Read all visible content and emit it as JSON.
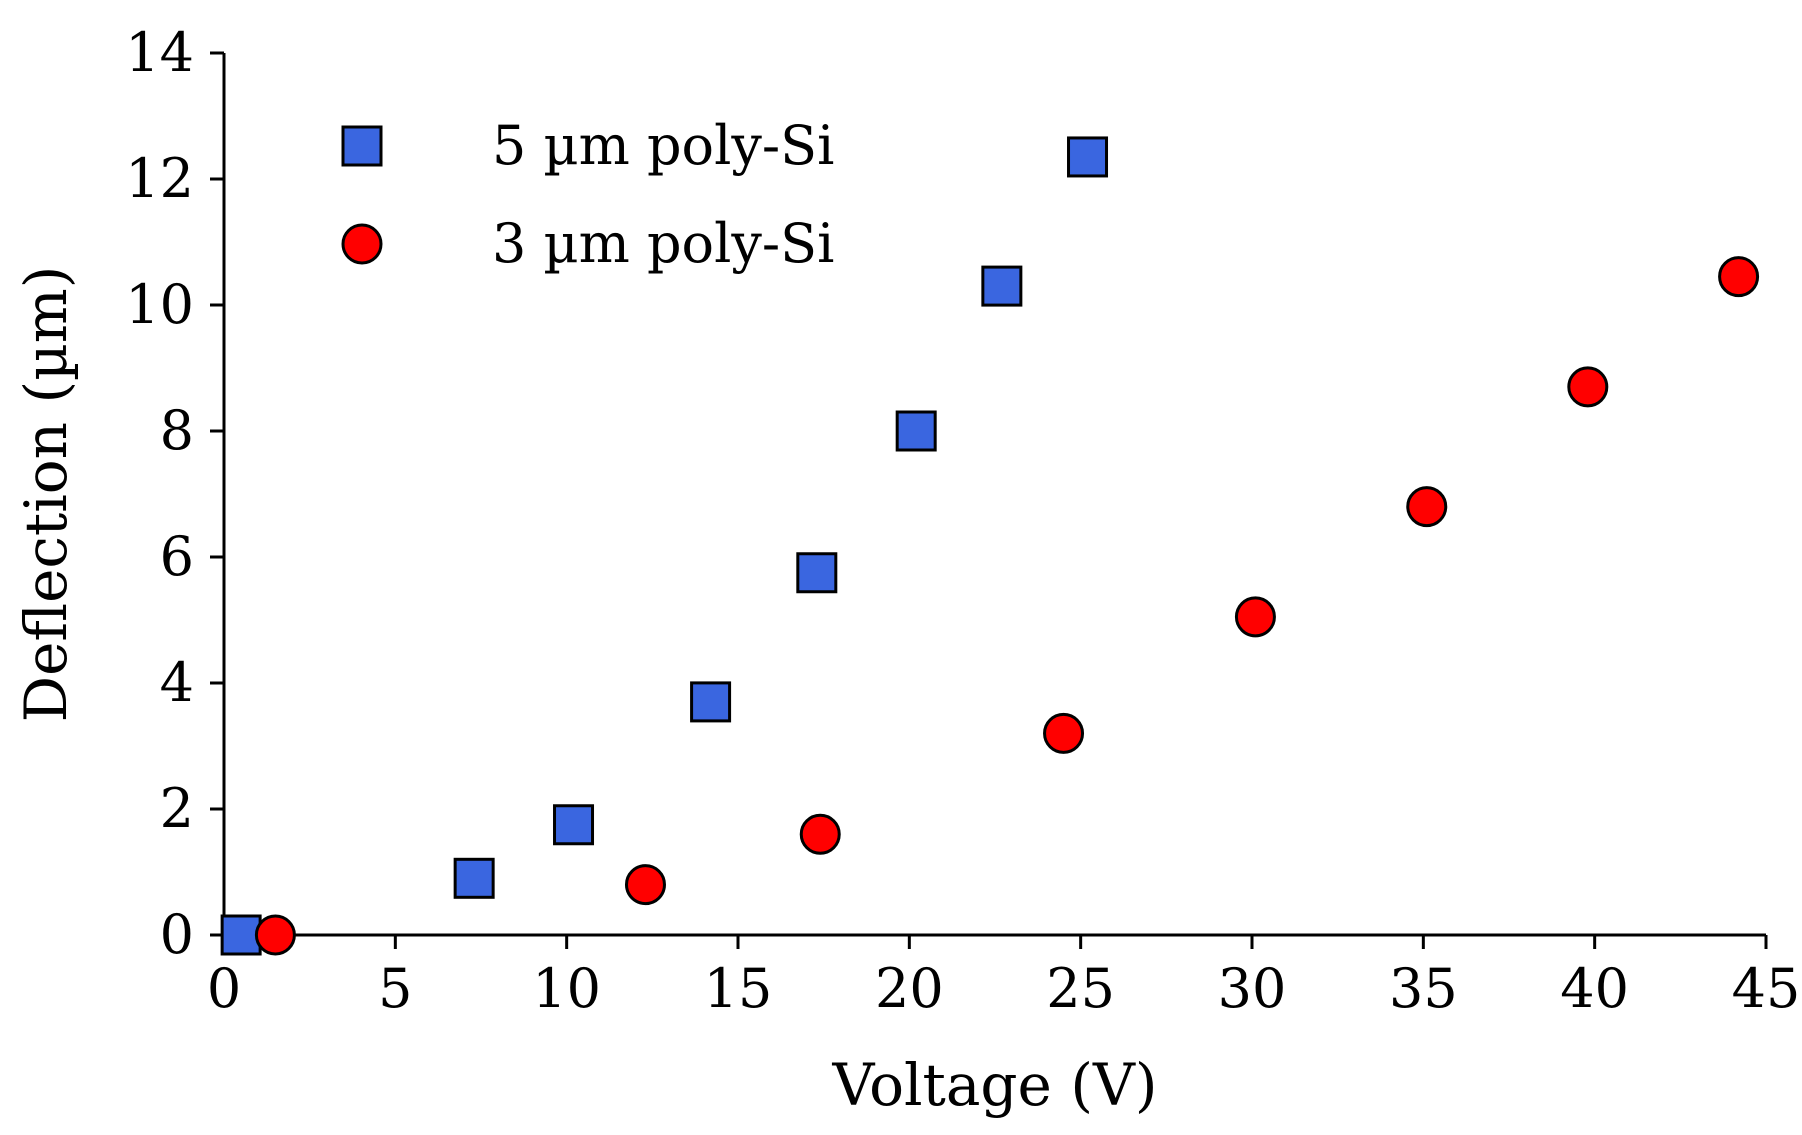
{
  "chart_data": {
    "type": "scatter",
    "title": "",
    "xlabel": "Voltage (V)",
    "ylabel": "Deflection (µm)",
    "xlim": [
      0,
      45
    ],
    "ylim": [
      0,
      14
    ],
    "x_ticks": [
      0,
      5,
      10,
      15,
      20,
      25,
      30,
      35,
      40,
      45
    ],
    "y_ticks": [
      0,
      2,
      4,
      6,
      8,
      10,
      12,
      14
    ],
    "grid": false,
    "legend_position": "top-left",
    "series": [
      {
        "name": "5 µm poly-Si",
        "marker": "square",
        "color": "#3a66e0",
        "x": [
          0.5,
          7.3,
          10.2,
          14.2,
          17.3,
          20.2,
          22.7,
          25.2
        ],
        "y": [
          0.0,
          0.9,
          1.75,
          3.7,
          5.75,
          8.0,
          10.3,
          12.35
        ]
      },
      {
        "name": "3 µm poly-Si",
        "marker": "circle",
        "color": "#ff0000",
        "x": [
          1.5,
          12.3,
          17.4,
          24.5,
          30.1,
          35.1,
          39.8,
          44.2
        ],
        "y": [
          0.0,
          0.8,
          1.6,
          3.2,
          5.05,
          6.8,
          8.7,
          10.45
        ]
      }
    ]
  }
}
